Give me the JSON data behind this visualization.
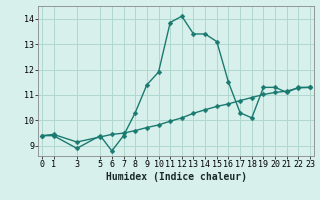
{
  "xlabel": "Humidex (Indice chaleur)",
  "bg_color": "#d8f0eb",
  "grid_color": "#b0d8ce",
  "line_color": "#1a7a70",
  "x_main": [
    0,
    1,
    3,
    5,
    6,
    7,
    8,
    9,
    10,
    11,
    12,
    13,
    14,
    15,
    16,
    17,
    18,
    19,
    20,
    21,
    22,
    23
  ],
  "y_main": [
    9.4,
    9.4,
    8.9,
    9.4,
    8.8,
    9.4,
    10.3,
    11.4,
    11.9,
    13.85,
    14.1,
    13.4,
    13.4,
    13.1,
    11.5,
    10.3,
    10.1,
    11.3,
    11.3,
    11.1,
    11.3,
    11.3
  ],
  "x_trend": [
    0,
    1,
    3,
    5,
    6,
    7,
    8,
    9,
    10,
    11,
    12,
    13,
    14,
    15,
    16,
    17,
    18,
    19,
    20,
    21,
    22,
    23
  ],
  "y_trend": [
    9.4,
    9.45,
    9.15,
    9.35,
    9.45,
    9.5,
    9.6,
    9.72,
    9.82,
    9.97,
    10.1,
    10.28,
    10.42,
    10.55,
    10.65,
    10.78,
    10.9,
    11.02,
    11.1,
    11.15,
    11.28,
    11.3
  ],
  "ylim": [
    8.6,
    14.5
  ],
  "yticks": [
    9,
    10,
    11,
    12,
    13,
    14
  ],
  "xticks": [
    0,
    1,
    3,
    5,
    6,
    7,
    8,
    9,
    10,
    11,
    12,
    13,
    14,
    15,
    16,
    17,
    18,
    19,
    20,
    21,
    22,
    23
  ],
  "xlim": [
    -0.3,
    23.3
  ],
  "markersize": 2.5,
  "linewidth": 1.0,
  "fontsize_label": 7,
  "fontsize_tick": 6
}
